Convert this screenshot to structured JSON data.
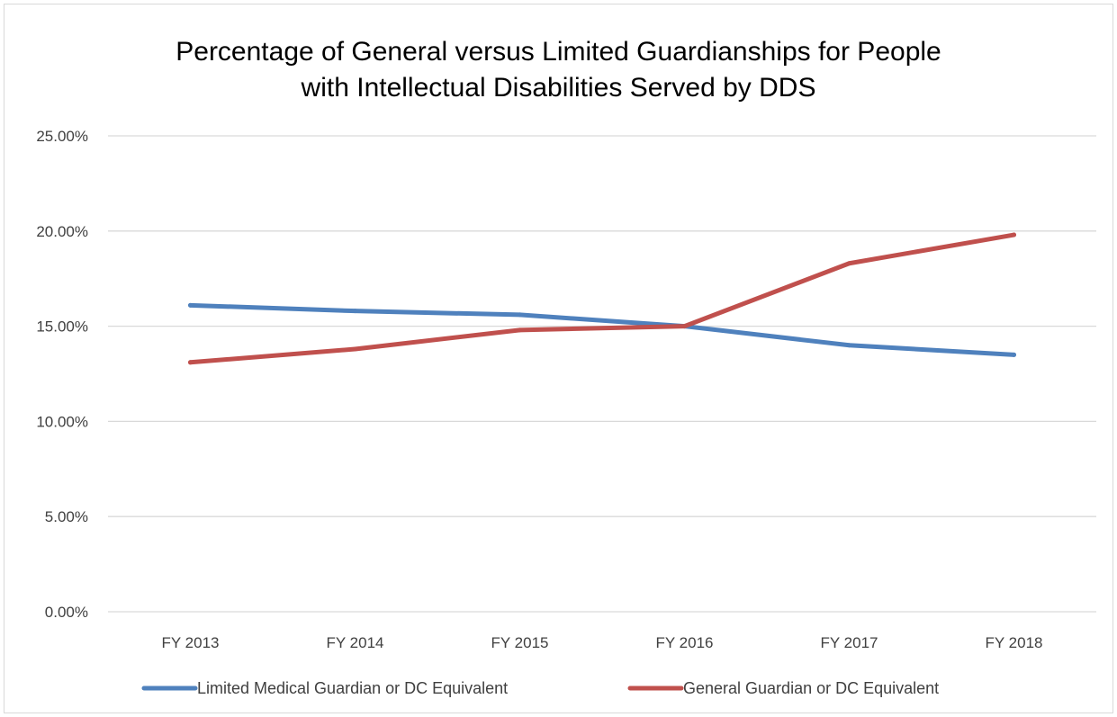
{
  "chart_data": {
    "type": "line",
    "title_lines": [
      "Percentage of General versus Limited Guardianships for People",
      "with Intellectual Disabilities Served by DDS"
    ],
    "categories": [
      "FY 2013",
      "FY 2014",
      "FY 2015",
      "FY 2016",
      "FY 2017",
      "FY 2018"
    ],
    "ylim": [
      0,
      0.25
    ],
    "y_ticks": [
      {
        "value": 0.25,
        "label": "25.00%"
      },
      {
        "value": 0.2,
        "label": "20.00%"
      },
      {
        "value": 0.15,
        "label": "15.00%"
      },
      {
        "value": 0.1,
        "label": "10.00%"
      },
      {
        "value": 0.05,
        "label": "5.00%"
      },
      {
        "value": 0.0,
        "label": "0.00%"
      }
    ],
    "grid": true,
    "legend_position": "bottom",
    "series": [
      {
        "name": "Limited Medical Guardian or DC Equivalent",
        "color": "#4f81bd",
        "values": [
          0.161,
          0.158,
          0.156,
          0.15,
          0.14,
          0.135
        ]
      },
      {
        "name": "General Guardian or DC Equivalent",
        "color": "#c0504d",
        "values": [
          0.131,
          0.138,
          0.148,
          0.15,
          0.183,
          0.198
        ]
      }
    ]
  }
}
